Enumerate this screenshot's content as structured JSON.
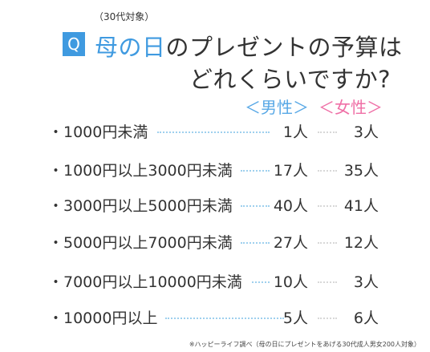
{
  "question": {
    "badge": "Q",
    "subtag": "（30代対象）",
    "title_highlight": "母の日",
    "title_rest": "のプレゼントの予算は",
    "title_line2": "どれくらいですか?"
  },
  "headers": {
    "male": "＜男性＞",
    "female": "＜女性＞"
  },
  "rows": [
    {
      "label": "・1000円未満",
      "male": "1人",
      "female": "3人"
    },
    {
      "label": "・1000円以上3000円未満",
      "male": "17人",
      "female": "35人"
    },
    {
      "label": "・3000円以上5000円未満",
      "male": "40人",
      "female": "41人"
    },
    {
      "label": "・5000円以上7000円未満",
      "male": "27人",
      "female": "12人"
    },
    {
      "label": "・7000円以上10000円未満",
      "male": "10人",
      "female": "3人"
    },
    {
      "label": "・10000円以上",
      "male": "5人",
      "female": "6人"
    }
  ],
  "footnote": "※ハッピーライフ調べ（母の日にプレゼントをあげる30代成人男女200人対象）"
}
